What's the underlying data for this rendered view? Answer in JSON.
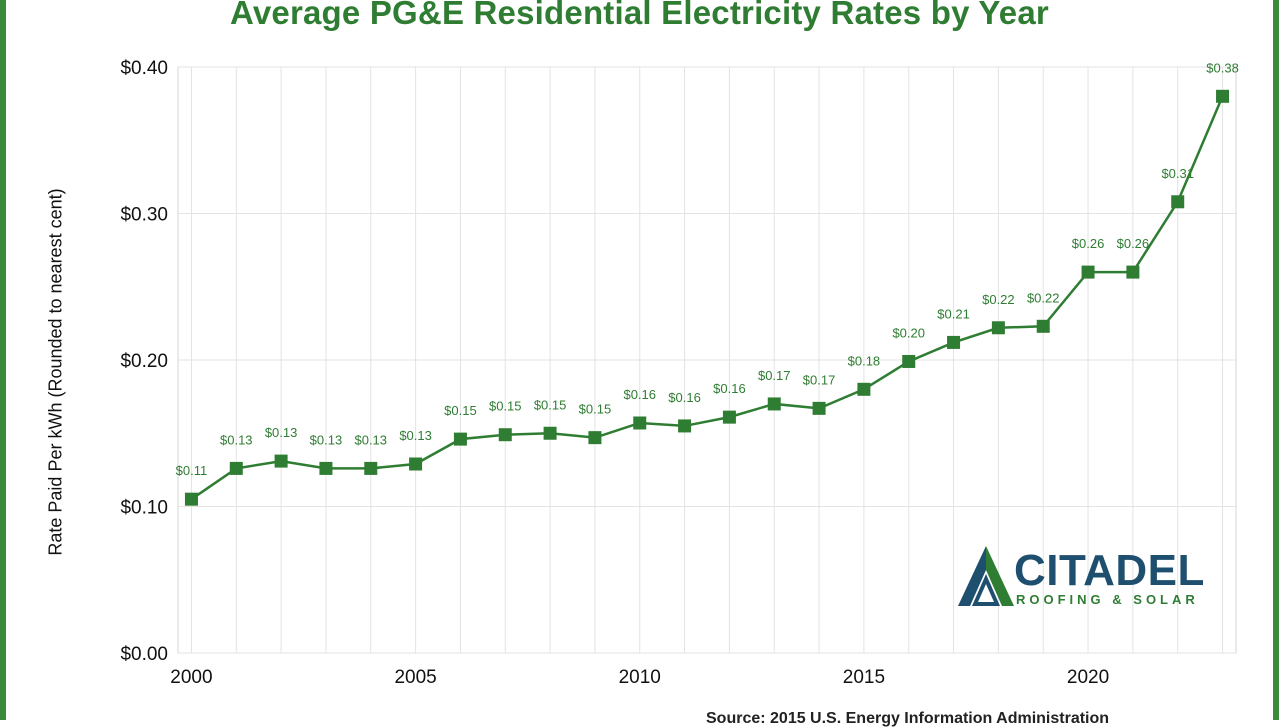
{
  "chart_data": {
    "type": "line",
    "title": "Average PG&E Residential Electricity Rates by Year",
    "ylabel": "Rate Paid Per kWh (Rounded to nearest cent)",
    "xlabel": "",
    "x": [
      2000,
      2001,
      2002,
      2003,
      2004,
      2005,
      2006,
      2007,
      2008,
      2009,
      2010,
      2011,
      2012,
      2013,
      2014,
      2015,
      2016,
      2017,
      2018,
      2019,
      2020,
      2021,
      2022,
      2023
    ],
    "series": [
      {
        "values": [
          0.105,
          0.126,
          0.131,
          0.126,
          0.126,
          0.129,
          0.146,
          0.149,
          0.15,
          0.147,
          0.157,
          0.155,
          0.161,
          0.17,
          0.167,
          0.18,
          0.199,
          0.212,
          0.222,
          0.223,
          0.26,
          0.26,
          0.308,
          0.38
        ],
        "labels": [
          "$0.11",
          "$0.13",
          "$0.13",
          "$0.13",
          "$0.13",
          "$0.13",
          "$0.15",
          "$0.15",
          "$0.15",
          "$0.15",
          "$0.16",
          "$0.16",
          "$0.16",
          "$0.17",
          "$0.17",
          "$0.18",
          "$0.20",
          "$0.21",
          "$0.22",
          "$0.22",
          "$0.26",
          "$0.26",
          "$0.31",
          "$0.38"
        ],
        "color": "#2e7d32",
        "marker": "square"
      }
    ],
    "xticks": [
      2000,
      2005,
      2010,
      2015,
      2020
    ],
    "xtick_labels": [
      "2000",
      "2005",
      "2010",
      "2015",
      "2020"
    ],
    "yticks": [
      0.0,
      0.1,
      0.2,
      0.3,
      0.4
    ],
    "ytick_labels": [
      "$0.00",
      "$0.10",
      "$0.20",
      "$0.30",
      "$0.40"
    ],
    "ylim": [
      0,
      0.4
    ],
    "xlim": [
      1999.7,
      2023.3
    ],
    "grid": true,
    "legend": "none",
    "colors": {
      "title": "#2f7d32",
      "line": "#2e7d32",
      "data_label": "#2f7d32",
      "grid": "#e3e3e3",
      "frame": "#3b8a3b"
    }
  },
  "source_note": "Source: 2015 U.S. Energy Information Administration",
  "logo": {
    "name": "CITADEL",
    "tagline": "ROOFING & SOLAR",
    "icon": "mountain-roof-icon",
    "colors": {
      "navy": "#1e4f6e",
      "green": "#2f7d32"
    }
  }
}
